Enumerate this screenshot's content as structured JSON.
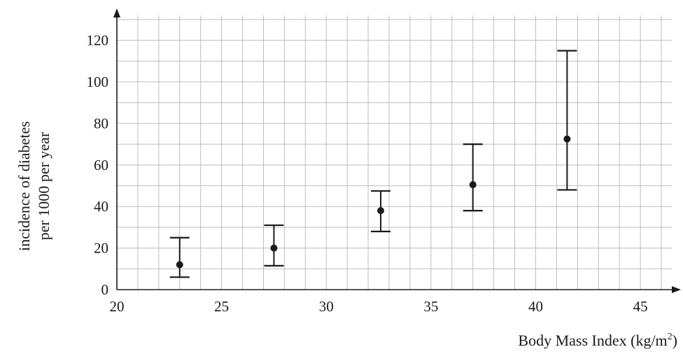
{
  "chart_data": {
    "type": "scatter",
    "title": "",
    "xlabel": "Body Mass Index (kg/m",
    "xlabel_superscript": "2",
    "xlabel_close": ")",
    "ylabel_lines": [
      "incidence of diabetes",
      "per 1000 per year"
    ],
    "xlim": [
      20,
      46.5
    ],
    "ylim": [
      0,
      132
    ],
    "x_ticks": [
      20,
      25,
      30,
      35,
      40,
      45
    ],
    "y_ticks": [
      0,
      20,
      40,
      60,
      80,
      100,
      120
    ],
    "grid": true,
    "grid_minor_x_step": 1,
    "grid_minor_y_step": 10,
    "points": [
      {
        "x": 23.0,
        "y": 12,
        "low": 6,
        "high": 25
      },
      {
        "x": 27.5,
        "y": 20,
        "low": 11.5,
        "high": 31
      },
      {
        "x": 32.6,
        "y": 38,
        "low": 28,
        "high": 47.5
      },
      {
        "x": 37.0,
        "y": 50.5,
        "low": 38,
        "high": 70
      },
      {
        "x": 41.5,
        "y": 72.5,
        "low": 48,
        "high": 115
      }
    ]
  },
  "colors": {
    "grid": "#bdbdbd",
    "axis": "#1a1a1a",
    "marker": "#1a1a1a"
  }
}
